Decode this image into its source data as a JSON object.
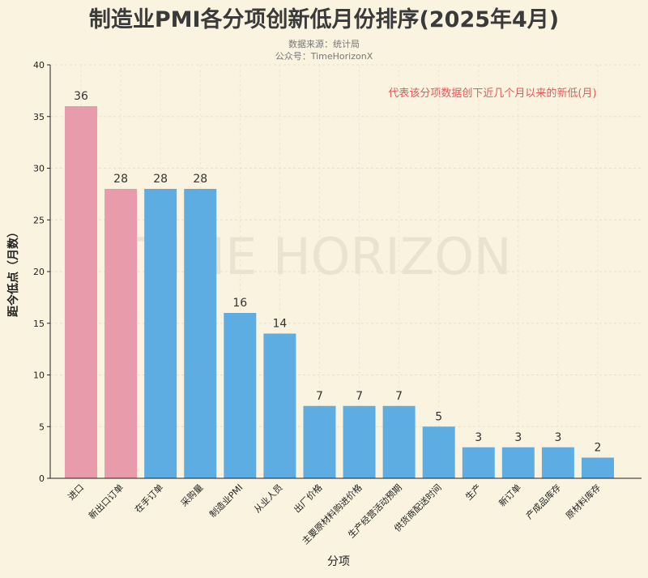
{
  "chart_data": {
    "type": "bar",
    "title": "制造业PMI各分项创新低月份排序(2025年4月)",
    "subtitle_lines": [
      "数据来源：统计局",
      "公众号：TimeHorizonX"
    ],
    "annotation": "代表该分项数据创下近几个月以来的新低(月)",
    "watermark": "TIME HORIZON",
    "xlabel": "分项",
    "ylabel": "距今低点（月数）",
    "ylim": [
      0,
      40
    ],
    "yticks": [
      0,
      5,
      10,
      15,
      20,
      25,
      30,
      35,
      40
    ],
    "grid": true,
    "categories": [
      "进口",
      "新出口订单",
      "在手订单",
      "采购量",
      "制造业PMI",
      "从业人员",
      "出厂价格",
      "主要原材料购进价格",
      "生产经营活动预期",
      "供货商配送时间",
      "生产",
      "新订单",
      "产成品库存",
      "原材料库存"
    ],
    "values": [
      36,
      28,
      28,
      28,
      16,
      14,
      7,
      7,
      7,
      5,
      3,
      3,
      3,
      2
    ],
    "highlight": [
      true,
      true,
      false,
      false,
      false,
      false,
      false,
      false,
      false,
      false,
      false,
      false,
      false,
      false
    ],
    "colors": {
      "highlight": "#e89bab",
      "normal": "#5dade2",
      "annotation": "#e05a5a"
    }
  }
}
